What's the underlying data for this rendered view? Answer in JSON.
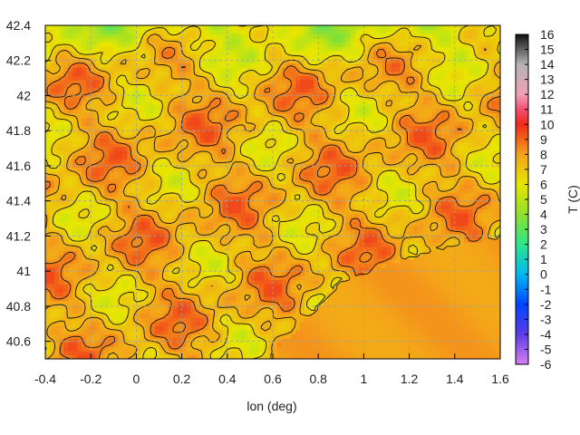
{
  "chart_data": {
    "type": "heatmap",
    "title": "",
    "xlabel": "lon (deg)",
    "ylabel": "",
    "colorbar_label": "T (C)",
    "xlim": [
      -0.4,
      1.6
    ],
    "ylim": [
      40.5,
      42.4
    ],
    "x_ticks": [
      "-0.4",
      "-0.2",
      "0",
      "0.2",
      "0.4",
      "0.6",
      "0.8",
      "1",
      "1.2",
      "1.4",
      "1.6"
    ],
    "y_ticks": [
      "42.4",
      "42.2",
      "42",
      "41.8",
      "41.6",
      "41.4",
      "41.2",
      "41",
      "40.8",
      "40.6"
    ],
    "colorbar_range": [
      -6,
      16
    ],
    "colorbar_ticks": [
      "16",
      "15",
      "14",
      "13",
      "12",
      "11",
      "10",
      "9",
      "8",
      "7",
      "6",
      "5",
      "4",
      "3",
      "2",
      "1",
      "0",
      "-1",
      "-2",
      "-3",
      "-4",
      "-5",
      "-6"
    ],
    "grid": true,
    "colormap_stops": [
      {
        "t": -6,
        "color": "#d77ff0"
      },
      {
        "t": -4,
        "color": "#5a3ce6"
      },
      {
        "t": -2,
        "color": "#0044ff"
      },
      {
        "t": 0,
        "color": "#00b8f0"
      },
      {
        "t": 2,
        "color": "#2ee68a"
      },
      {
        "t": 4,
        "color": "#8fe02e"
      },
      {
        "t": 6,
        "color": "#e8e600"
      },
      {
        "t": 8,
        "color": "#f4a21a"
      },
      {
        "t": 10,
        "color": "#f02a1a"
      },
      {
        "t": 11,
        "color": "#f05070"
      },
      {
        "t": 12,
        "color": "#f0a0b8"
      },
      {
        "t": 14,
        "color": "#b4b4b4"
      },
      {
        "t": 16,
        "color": "#101010"
      }
    ],
    "field_summary": {
      "sea_region_t": 8,
      "inland_mean_t": 7.5,
      "mountain_min_t": 3,
      "coastal_ridge_max_t": 9.5
    }
  }
}
